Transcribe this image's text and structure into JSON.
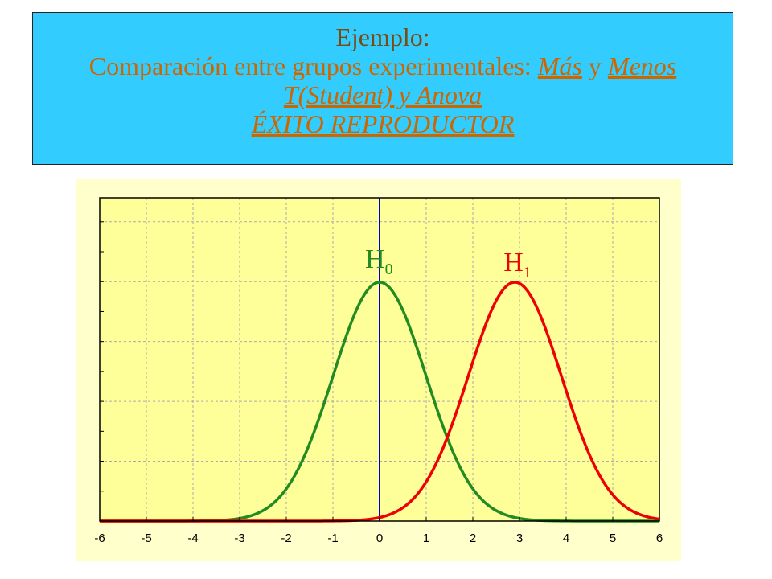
{
  "header": {
    "line1": "Ejemplo:",
    "line2_prefix": "Comparación entre grupos experimentales: ",
    "line2_mas": "Más",
    "line2_y": " y ",
    "line2_menos": "Menos",
    "line3": "T(Student) y Anova",
    "line4": "ÉXITO REPRODUCTOR"
  },
  "colors": {
    "header_bg": "#33ccff",
    "plot_bg": "#ffff99",
    "h0_curve": "#228b22",
    "h1_curve": "#ee0000",
    "vertical_line": "#0000cc"
  },
  "chart_data": {
    "type": "line",
    "xlim": [
      -6,
      6
    ],
    "ylim": [
      0,
      0.54
    ],
    "x_ticks": [
      -6,
      -5,
      -4,
      -3,
      -2,
      -1,
      0,
      1,
      2,
      3,
      4,
      5,
      6
    ],
    "grid": true,
    "series": [
      {
        "name": "H",
        "subscript": "0",
        "distribution": "normal",
        "mean": 0,
        "sd": 1,
        "color": "#228b22"
      },
      {
        "name": "H",
        "subscript": "1",
        "distribution": "normal",
        "mean": 2.9,
        "sd": 1,
        "color": "#ee0000"
      }
    ],
    "vertical_line_x": 0
  }
}
